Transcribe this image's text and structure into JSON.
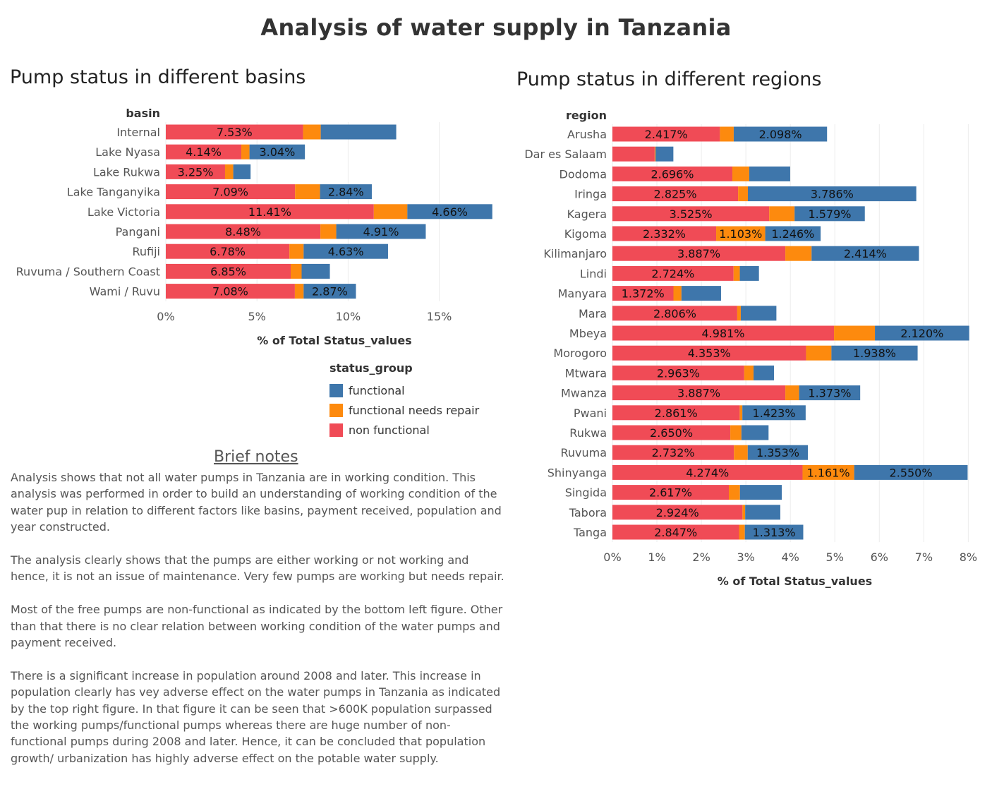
{
  "title": "Analysis of water supply in Tanzania",
  "colors": {
    "functional": "#3e76ab",
    "functional needs repair": "#fd8a0e",
    "non functional": "#f04b56"
  },
  "legend": {
    "title": "status_group",
    "items": [
      "functional",
      "functional needs repair",
      "non functional"
    ]
  },
  "notes": {
    "heading": "Brief notes",
    "paragraphs": [
      "Analysis shows that not all water pumps in Tanzania are in working condition. This analysis was performed in order to build an understanding of working condition of the water pup in relation to different factors like basins, payment received, population and year constructed.",
      "The analysis clearly shows that the pumps are either working or not working and hence, it is not an issue of maintenance. Very few pumps are working but needs repair.",
      "Most of the free pumps are non-functional as indicated by the bottom left figure. Other than that there is no clear relation between working condition of the water pumps and payment received.",
      "There is a significant increase in population around 2008 and later. This increase in population clearly has vey adverse effect on the water pumps in Tanzania as indicated by the top right figure. In that figure it can be seen that  >600K population surpassed the working pumps/functional pumps whereas there are huge number of non-functional pumps during 2008 and later. Hence, it can be concluded that population growth/ urbanization has highly adverse effect on the potable water supply."
    ]
  },
  "chart_data": [
    {
      "id": "basins",
      "type": "bar",
      "orientation": "horizontal",
      "stacked": true,
      "title": "Pump status in different basins",
      "category_label": "basin",
      "xlabel": "% of Total Status_values",
      "xlim": [
        0,
        18.5
      ],
      "xticks": [
        0,
        5,
        10,
        15
      ],
      "tick_labels": [
        "0%",
        "5%",
        "10%",
        "15%"
      ],
      "grid": true,
      "categories": [
        "Internal",
        "Lake Nyasa",
        "Lake Rukwa",
        "Lake Tanganyika",
        "Lake Victoria",
        "Pangani",
        "Rufiji",
        "Ruvuma / Southern Coast",
        "Wami / Ruvu"
      ],
      "series": [
        {
          "name": "non functional",
          "values": [
            7.53,
            4.14,
            3.25,
            7.09,
            11.41,
            8.48,
            6.78,
            6.85,
            7.08
          ],
          "labels": [
            "7.53%",
            "4.14%",
            "3.25%",
            "7.09%",
            "11.41%",
            "8.48%",
            "6.78%",
            "6.85%",
            "7.08%"
          ]
        },
        {
          "name": "functional needs repair",
          "values": [
            0.97,
            0.45,
            0.45,
            1.37,
            1.84,
            0.87,
            0.78,
            0.6,
            0.48
          ],
          "labels": [
            "",
            "",
            "",
            "",
            "",
            "",
            "",
            "",
            ""
          ]
        },
        {
          "name": "functional",
          "values": [
            4.14,
            3.04,
            0.95,
            2.84,
            4.66,
            4.91,
            4.63,
            1.55,
            2.87
          ],
          "labels": [
            "",
            "3.04%",
            "",
            "2.84%",
            "4.66%",
            "4.91%",
            "4.63%",
            "",
            "2.87%"
          ]
        }
      ]
    },
    {
      "id": "regions",
      "type": "bar",
      "orientation": "horizontal",
      "stacked": true,
      "title": "Pump status in different regions",
      "category_label": "region",
      "xlabel": "% of Total Status_values",
      "xlim": [
        0,
        8.2
      ],
      "xticks": [
        0,
        1,
        2,
        3,
        4,
        5,
        6,
        7,
        8
      ],
      "tick_labels": [
        "0%",
        "1%",
        "2%",
        "3%",
        "4%",
        "5%",
        "6%",
        "7%",
        "8%"
      ],
      "grid": true,
      "categories": [
        "Arusha",
        "Dar es Salaam",
        "Dodoma",
        "Iringa",
        "Kagera",
        "Kigoma",
        "Kilimanjaro",
        "Lindi",
        "Manyara",
        "Mara",
        "Mbeya",
        "Morogoro",
        "Mtwara",
        "Mwanza",
        "Pwani",
        "Rukwa",
        "Ruvuma",
        "Shinyanga",
        "Singida",
        "Tabora",
        "Tanga"
      ],
      "series": [
        {
          "name": "non functional",
          "values": [
            2.417,
            0.95,
            2.696,
            2.825,
            3.525,
            2.332,
            3.887,
            2.724,
            1.372,
            2.806,
            4.981,
            4.353,
            2.963,
            3.887,
            2.861,
            2.65,
            2.732,
            4.274,
            2.617,
            2.924,
            2.847
          ],
          "labels": [
            "2.417%",
            "",
            "2.696%",
            "2.825%",
            "3.525%",
            "2.332%",
            "3.887%",
            "2.724%",
            "1.372%",
            "2.806%",
            "4.981%",
            "4.353%",
            "2.963%",
            "3.887%",
            "2.861%",
            "2.650%",
            "2.732%",
            "4.274%",
            "2.617%",
            "2.924%",
            "2.847%"
          ]
        },
        {
          "name": "functional needs repair",
          "values": [
            0.31,
            0.02,
            0.38,
            0.22,
            0.57,
            1.103,
            0.59,
            0.14,
            0.18,
            0.08,
            0.92,
            0.57,
            0.21,
            0.31,
            0.06,
            0.25,
            0.31,
            1.161,
            0.25,
            0.06,
            0.13
          ],
          "labels": [
            "",
            "",
            "",
            "",
            "",
            "1.103%",
            "",
            "",
            "",
            "",
            "",
            "",
            "",
            "",
            "",
            "",
            "",
            "1.161%",
            "",
            "",
            ""
          ]
        },
        {
          "name": "functional",
          "values": [
            2.098,
            0.4,
            0.92,
            3.786,
            1.579,
            1.246,
            2.414,
            0.43,
            0.89,
            0.8,
            2.12,
            1.938,
            0.46,
            1.373,
            1.423,
            0.61,
            1.353,
            2.55,
            0.94,
            0.79,
            1.313
          ],
          "labels": [
            "2.098%",
            "",
            "",
            "3.786%",
            "1.579%",
            "1.246%",
            "2.414%",
            "",
            "",
            "",
            "2.120%",
            "1.938%",
            "",
            "1.373%",
            "1.423%",
            "",
            "1.353%",
            "2.550%",
            "",
            "",
            "1.313%"
          ]
        }
      ]
    }
  ]
}
